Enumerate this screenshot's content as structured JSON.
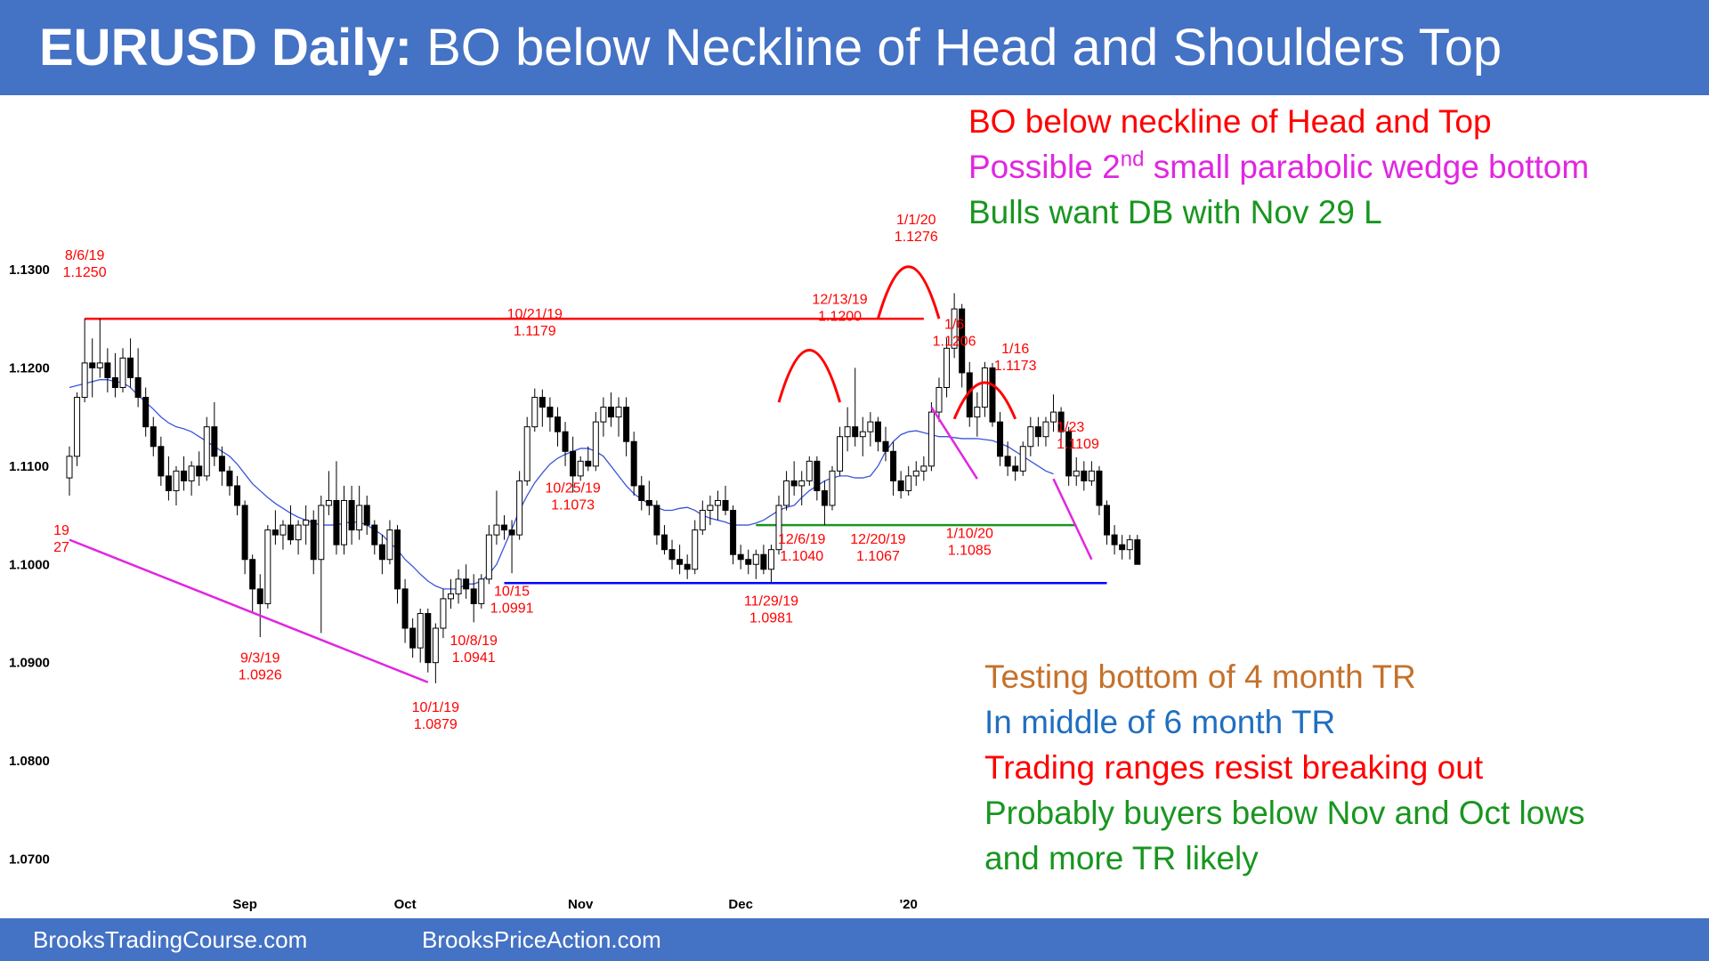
{
  "header": {
    "title_bold": "EURUSD Daily:",
    "title_rest": "BO below Neckline of Head and Shoulders Top",
    "bg_color": "#4472c4"
  },
  "top_notes": [
    {
      "text": "BO below neckline of Head and Top",
      "color": "#ff0000"
    },
    {
      "text_before": "Possible 2",
      "sup": "nd",
      "text_after": " small parabolic wedge bottom",
      "color": "#e126e1"
    },
    {
      "text": "Bulls want DB with Nov 29 L",
      "color": "#18961f"
    }
  ],
  "bottom_notes": [
    {
      "text": "Testing bottom of 4 month TR",
      "color": "#c5712a"
    },
    {
      "text": "In middle of 6 month TR",
      "color": "#1f6fc0"
    },
    {
      "text": "Trading ranges resist breaking out",
      "color": "#ff0000"
    },
    {
      "text": "Probably buyers below Nov and Oct lows",
      "color": "#18961f"
    },
    {
      "text": "and more TR likely",
      "color": "#18961f"
    }
  ],
  "footer": {
    "left": "BrooksTradingCourse.com",
    "right": "BrooksPriceAction.com"
  },
  "chart_data": {
    "type": "candlestick",
    "y_ticks": [
      "1.1300",
      "1.1200",
      "1.1100",
      "1.1000",
      "1.0900",
      "1.0800",
      "1.0700"
    ],
    "ylim": [
      1.07,
      1.13
    ],
    "x_ticks": [
      {
        "label": "Sep",
        "index": 23
      },
      {
        "label": "Oct",
        "index": 44
      },
      {
        "label": "Nov",
        "index": 67
      },
      {
        "label": "Dec",
        "index": 88
      },
      {
        "label": "'20",
        "index": 110
      }
    ],
    "ohlc": [
      [
        1.1088,
        1.112,
        1.107,
        1.111
      ],
      [
        1.111,
        1.1175,
        1.11,
        1.117
      ],
      [
        1.117,
        1.125,
        1.1165,
        1.1205
      ],
      [
        1.1205,
        1.123,
        1.117,
        1.12
      ],
      [
        1.12,
        1.125,
        1.119,
        1.1205
      ],
      [
        1.1205,
        1.122,
        1.1175,
        1.119
      ],
      [
        1.119,
        1.1215,
        1.117,
        1.118
      ],
      [
        1.118,
        1.122,
        1.1175,
        1.121
      ],
      [
        1.121,
        1.123,
        1.118,
        1.119
      ],
      [
        1.119,
        1.122,
        1.116,
        1.117
      ],
      [
        1.117,
        1.118,
        1.113,
        1.114
      ],
      [
        1.114,
        1.115,
        1.111,
        1.112
      ],
      [
        1.112,
        1.113,
        1.108,
        1.109
      ],
      [
        1.109,
        1.111,
        1.1065,
        1.1075
      ],
      [
        1.1075,
        1.11,
        1.106,
        1.1095
      ],
      [
        1.1095,
        1.111,
        1.1075,
        1.1085
      ],
      [
        1.1085,
        1.1105,
        1.107,
        1.11
      ],
      [
        1.11,
        1.1115,
        1.108,
        1.109
      ],
      [
        1.109,
        1.115,
        1.1085,
        1.114
      ],
      [
        1.114,
        1.1165,
        1.11,
        1.111
      ],
      [
        1.111,
        1.112,
        1.108,
        1.1095
      ],
      [
        1.1095,
        1.11,
        1.107,
        1.108
      ],
      [
        1.108,
        1.109,
        1.105,
        1.106
      ],
      [
        1.106,
        1.1065,
        1.099,
        1.1005
      ],
      [
        1.1005,
        1.101,
        1.095,
        1.0975
      ],
      [
        1.0975,
        1.099,
        1.0926,
        1.096
      ],
      [
        1.096,
        1.104,
        1.0955,
        1.1035
      ],
      [
        1.1035,
        1.1055,
        1.102,
        1.103
      ],
      [
        1.103,
        1.1045,
        1.1015,
        1.104
      ],
      [
        1.104,
        1.106,
        1.102,
        1.1025
      ],
      [
        1.1025,
        1.1045,
        1.101,
        1.104
      ],
      [
        1.104,
        1.106,
        1.102,
        1.1045
      ],
      [
        1.1045,
        1.1055,
        1.099,
        1.1005
      ],
      [
        1.1005,
        1.107,
        1.093,
        1.106
      ],
      [
        1.106,
        1.1095,
        1.105,
        1.1065
      ],
      [
        1.1065,
        1.1105,
        1.101,
        1.102
      ],
      [
        1.102,
        1.108,
        1.101,
        1.1065
      ],
      [
        1.1065,
        1.108,
        1.102,
        1.1035
      ],
      [
        1.1035,
        1.108,
        1.1025,
        1.106
      ],
      [
        1.106,
        1.107,
        1.103,
        1.104
      ],
      [
        1.104,
        1.1045,
        1.101,
        1.102
      ],
      [
        1.102,
        1.103,
        1.099,
        1.1005
      ],
      [
        1.1005,
        1.1045,
        1.1,
        1.1035
      ],
      [
        1.1035,
        1.104,
        1.096,
        1.0975
      ],
      [
        1.0975,
        1.0985,
        1.092,
        1.0935
      ],
      [
        1.0935,
        1.0945,
        1.0905,
        1.0915
      ],
      [
        1.0915,
        1.0955,
        1.09,
        1.095
      ],
      [
        1.095,
        1.0955,
        1.089,
        1.09
      ],
      [
        1.09,
        1.094,
        1.0879,
        1.0935
      ],
      [
        1.0935,
        1.0975,
        1.0925,
        1.0965
      ],
      [
        1.0965,
        1.0985,
        1.0955,
        1.097
      ],
      [
        1.097,
        1.0995,
        1.096,
        1.0985
      ],
      [
        1.0985,
        1.1,
        1.0965,
        1.0975
      ],
      [
        1.0975,
        1.099,
        1.0941,
        1.096
      ],
      [
        1.096,
        1.099,
        1.0955,
        1.0985
      ],
      [
        1.0985,
        1.104,
        1.098,
        1.103
      ],
      [
        1.103,
        1.1075,
        1.102,
        1.104
      ],
      [
        1.104,
        1.105,
        1.1025,
        1.1035
      ],
      [
        1.1035,
        1.1045,
        1.0991,
        1.103
      ],
      [
        1.103,
        1.1095,
        1.1025,
        1.1085
      ],
      [
        1.1085,
        1.115,
        1.108,
        1.114
      ],
      [
        1.114,
        1.1179,
        1.1135,
        1.117
      ],
      [
        1.117,
        1.1178,
        1.114,
        1.116
      ],
      [
        1.116,
        1.117,
        1.1135,
        1.115
      ],
      [
        1.115,
        1.116,
        1.112,
        1.1135
      ],
      [
        1.1135,
        1.1145,
        1.11,
        1.1115
      ],
      [
        1.1115,
        1.113,
        1.1073,
        1.109
      ],
      [
        1.109,
        1.111,
        1.1085,
        1.1105
      ],
      [
        1.1105,
        1.112,
        1.1095,
        1.11
      ],
      [
        1.11,
        1.1155,
        1.1095,
        1.1145
      ],
      [
        1.1145,
        1.117,
        1.113,
        1.116
      ],
      [
        1.116,
        1.1175,
        1.114,
        1.115
      ],
      [
        1.115,
        1.117,
        1.113,
        1.116
      ],
      [
        1.116,
        1.117,
        1.111,
        1.1125
      ],
      [
        1.1125,
        1.1135,
        1.107,
        1.108
      ],
      [
        1.108,
        1.109,
        1.1055,
        1.1065
      ],
      [
        1.1065,
        1.1085,
        1.105,
        1.106
      ],
      [
        1.106,
        1.1065,
        1.102,
        1.103
      ],
      [
        1.103,
        1.104,
        1.101,
        1.1015
      ],
      [
        1.1015,
        1.1025,
        1.0995,
        1.1005
      ],
      [
        1.1005,
        1.102,
        1.099,
        1.1
      ],
      [
        1.1,
        1.101,
        1.0985,
        1.0995
      ],
      [
        1.0995,
        1.1045,
        1.099,
        1.1035
      ],
      [
        1.1035,
        1.1065,
        1.103,
        1.1055
      ],
      [
        1.1055,
        1.107,
        1.104,
        1.106
      ],
      [
        1.106,
        1.1075,
        1.1045,
        1.1065
      ],
      [
        1.1065,
        1.108,
        1.105,
        1.1055
      ],
      [
        1.1055,
        1.106,
        1.1,
        1.101
      ],
      [
        1.101,
        1.102,
        1.0995,
        1.1005
      ],
      [
        1.1005,
        1.1015,
        1.099,
        1.1
      ],
      [
        1.1,
        1.1015,
        1.0985,
        1.101
      ],
      [
        1.101,
        1.102,
        1.099,
        1.0995
      ],
      [
        1.0995,
        1.102,
        1.0981,
        1.1015
      ],
      [
        1.1015,
        1.107,
        1.101,
        1.106
      ],
      [
        1.106,
        1.1095,
        1.1055,
        1.1085
      ],
      [
        1.1085,
        1.1105,
        1.107,
        1.108
      ],
      [
        1.108,
        1.1095,
        1.106,
        1.1085
      ],
      [
        1.1085,
        1.111,
        1.108,
        1.1105
      ],
      [
        1.1105,
        1.111,
        1.1065,
        1.1075
      ],
      [
        1.1075,
        1.1085,
        1.104,
        1.106
      ],
      [
        1.106,
        1.11,
        1.1055,
        1.1095
      ],
      [
        1.1095,
        1.114,
        1.109,
        1.113
      ],
      [
        1.113,
        1.116,
        1.1115,
        1.114
      ],
      [
        1.114,
        1.12,
        1.112,
        1.113
      ],
      [
        1.113,
        1.115,
        1.111,
        1.1135
      ],
      [
        1.1135,
        1.1155,
        1.112,
        1.1145
      ],
      [
        1.1145,
        1.115,
        1.1115,
        1.1125
      ],
      [
        1.1125,
        1.114,
        1.1105,
        1.1115
      ],
      [
        1.1115,
        1.1125,
        1.107,
        1.1085
      ],
      [
        1.1085,
        1.1095,
        1.1067,
        1.1075
      ],
      [
        1.1075,
        1.11,
        1.107,
        1.109
      ],
      [
        1.109,
        1.1105,
        1.108,
        1.1095
      ],
      [
        1.1095,
        1.111,
        1.1085,
        1.11
      ],
      [
        1.11,
        1.1165,
        1.1095,
        1.1155
      ],
      [
        1.1155,
        1.119,
        1.1145,
        1.118
      ],
      [
        1.118,
        1.123,
        1.117,
        1.122
      ],
      [
        1.122,
        1.1276,
        1.121,
        1.126
      ],
      [
        1.126,
        1.1265,
        1.118,
        1.1195
      ],
      [
        1.1195,
        1.1206,
        1.114,
        1.115
      ],
      [
        1.115,
        1.1175,
        1.113,
        1.116
      ],
      [
        1.116,
        1.1206,
        1.115,
        1.12
      ],
      [
        1.12,
        1.1205,
        1.114,
        1.1145
      ],
      [
        1.1145,
        1.1155,
        1.11,
        1.111
      ],
      [
        1.111,
        1.1125,
        1.109,
        1.11
      ],
      [
        1.11,
        1.111,
        1.1085,
        1.1095
      ],
      [
        1.1095,
        1.1125,
        1.109,
        1.112
      ],
      [
        1.112,
        1.115,
        1.111,
        1.114
      ],
      [
        1.114,
        1.115,
        1.112,
        1.113
      ],
      [
        1.113,
        1.115,
        1.112,
        1.1145
      ],
      [
        1.1145,
        1.1173,
        1.1135,
        1.1155
      ],
      [
        1.1155,
        1.116,
        1.112,
        1.1135
      ],
      [
        1.1135,
        1.114,
        1.108,
        1.109
      ],
      [
        1.109,
        1.1109,
        1.108,
        1.1095
      ],
      [
        1.1095,
        1.1105,
        1.1075,
        1.1085
      ],
      [
        1.1085,
        1.1105,
        1.108,
        1.1095
      ],
      [
        1.1095,
        1.11,
        1.105,
        1.106
      ],
      [
        1.106,
        1.1065,
        1.102,
        1.103
      ],
      [
        1.103,
        1.104,
        1.101,
        1.102
      ],
      [
        1.102,
        1.103,
        1.1005,
        1.1015
      ],
      [
        1.1015,
        1.103,
        1.1005,
        1.1025
      ],
      [
        1.1025,
        1.103,
        1.1,
        1.1
      ]
    ],
    "ema": [
      1.118,
      1.1182,
      1.1184,
      1.1186,
      1.1188,
      1.1188,
      1.1186,
      1.1185,
      1.118,
      1.1172,
      1.1165,
      1.1158,
      1.115,
      1.1144,
      1.114,
      1.1138,
      1.1135,
      1.113,
      1.1125,
      1.112,
      1.1115,
      1.111,
      1.1102,
      1.1092,
      1.1082,
      1.1075,
      1.1068,
      1.1062,
      1.1057,
      1.1052,
      1.1048,
      1.1045,
      1.1042,
      1.104,
      1.104,
      1.104,
      1.1042,
      1.1043,
      1.1043,
      1.104,
      1.1035,
      1.103,
      1.1022,
      1.1015,
      1.1005,
      1.0998,
      1.099,
      1.0983,
      1.0978,
      1.0975,
      1.0975,
      1.0975,
      1.098,
      1.098,
      1.0983,
      1.099,
      1.1,
      1.1018,
      1.1036,
      1.1055,
      1.107,
      1.1083,
      1.1093,
      1.1102,
      1.1108,
      1.1112,
      1.1115,
      1.1118,
      1.1118,
      1.1115,
      1.111,
      1.11,
      1.109,
      1.108,
      1.1072,
      1.1066,
      1.1062,
      1.1058,
      1.1055,
      1.1055,
      1.1057,
      1.1058,
      1.1055,
      1.105,
      1.1047,
      1.1045,
      1.1043,
      1.104,
      1.104,
      1.104,
      1.1042,
      1.1045,
      1.105,
      1.1055,
      1.1058,
      1.106,
      1.1068,
      1.1075,
      1.108,
      1.1085,
      1.1088,
      1.109,
      1.109,
      1.1088,
      1.1088,
      1.109,
      1.11,
      1.1115,
      1.1125,
      1.1132,
      1.1135,
      1.1136,
      1.1134,
      1.1132,
      1.113,
      1.113,
      1.1129,
      1.1128,
      1.1128,
      1.1128,
      1.1127,
      1.1126,
      1.1123,
      1.112,
      1.1115,
      1.111,
      1.1105,
      1.11,
      1.1095,
      1.1092
    ],
    "horizontal_lines": [
      {
        "y": 1.125,
        "from": 2,
        "to": 112,
        "color": "#ff0000"
      },
      {
        "y": 1.104,
        "from": 90,
        "to": 132,
        "color": "#18961f"
      },
      {
        "y": 1.0981,
        "from": 57,
        "to": 136,
        "color": "#0000ff"
      }
    ],
    "trend_lines": [
      {
        "from": [
          0,
          1.1025
        ],
        "to": [
          47,
          1.088
        ],
        "color": "#e126e1"
      },
      {
        "from": [
          113,
          1.116
        ],
        "to": [
          119,
          1.1087
        ],
        "color": "#e126e1"
      },
      {
        "from": [
          129,
          1.1087
        ],
        "to": [
          134,
          1.1005
        ],
        "color": "#e126e1"
      }
    ],
    "arcs": [
      {
        "from": [
          93,
          1.1165
        ],
        "to": [
          101,
          1.1165
        ],
        "peak": 1.1218
      },
      {
        "from": [
          106,
          1.125
        ],
        "to": [
          114,
          1.125
        ],
        "peak": 1.1303
      },
      {
        "from": [
          116,
          1.1148
        ],
        "to": [
          124,
          1.1148
        ],
        "peak": 1.1185
      }
    ],
    "annotations": [
      {
        "lines": [
          "8/6/19",
          "1.1250"
        ],
        "index": 2,
        "y": 1.131
      },
      {
        "lines": [
          "19",
          "27"
        ],
        "index": -1.5,
        "y": 1.103,
        "anchor": "start"
      },
      {
        "lines": [
          "9/3/19",
          "1.0926"
        ],
        "index": 25,
        "y": 1.09
      },
      {
        "lines": [
          "10/1/19",
          "1.0879"
        ],
        "index": 48,
        "y": 1.085
      },
      {
        "lines": [
          "10/8/19",
          "1.0941"
        ],
        "index": 53,
        "y": 1.0918
      },
      {
        "lines": [
          "10/15",
          "1.0991"
        ],
        "index": 58,
        "y": 1.0968
      },
      {
        "lines": [
          "10/21/19",
          "1.1179"
        ],
        "index": 61,
        "y": 1.125
      },
      {
        "lines": [
          "10/25/19",
          "1.1073"
        ],
        "index": 66,
        "y": 1.1073
      },
      {
        "lines": [
          "11/29/19",
          "1.0981"
        ],
        "index": 92,
        "y": 1.0958
      },
      {
        "lines": [
          "12/6/19",
          "1.1040"
        ],
        "index": 96,
        "y": 1.1021
      },
      {
        "lines": [
          "12/13/19",
          "1.1200"
        ],
        "index": 101,
        "y": 1.1265
      },
      {
        "lines": [
          "12/20/19",
          "1.1067"
        ],
        "index": 106,
        "y": 1.1021
      },
      {
        "lines": [
          "1/1/20",
          "1.1276"
        ],
        "index": 111,
        "y": 1.1346
      },
      {
        "lines": [
          "1/6",
          "1.1206"
        ],
        "index": 116,
        "y": 1.124
      },
      {
        "lines": [
          "1/10/20",
          "1.1085"
        ],
        "index": 118,
        "y": 1.1027
      },
      {
        "lines": [
          "1/16",
          "1.1173"
        ],
        "index": 124,
        "y": 1.1215
      },
      {
        "lines": [
          "1/23",
          "1.1109"
        ],
        "index": 130,
        "y": 1.1135,
        "anchor": "start"
      }
    ]
  }
}
